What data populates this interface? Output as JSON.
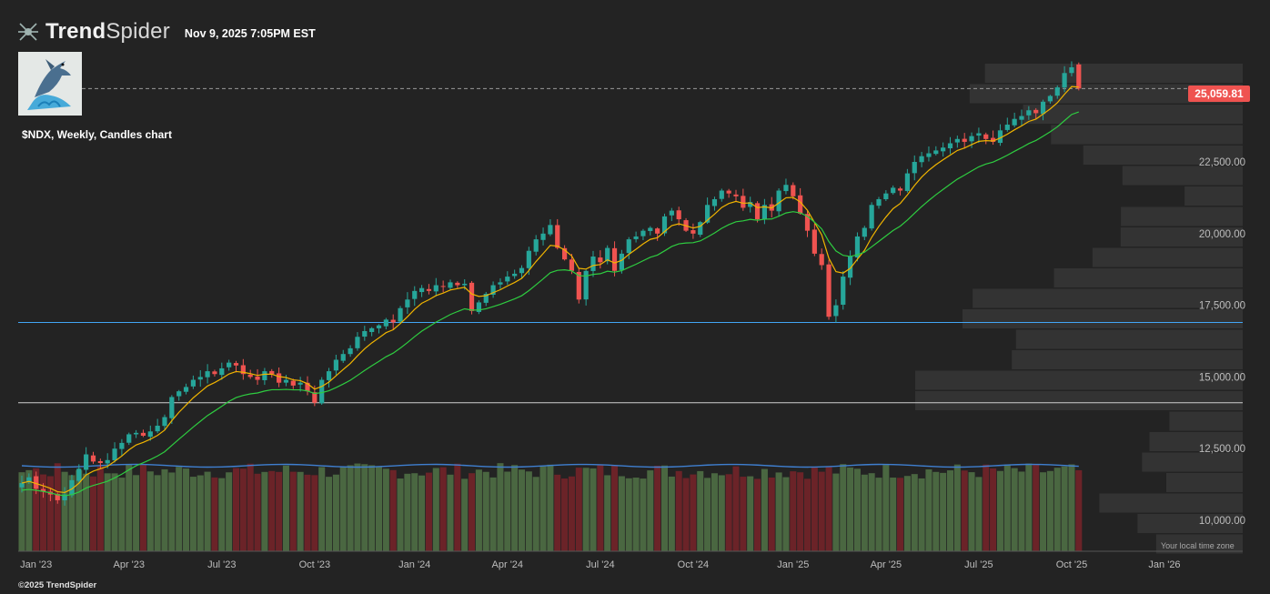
{
  "header": {
    "brand_bold": "Trend",
    "brand_light": "Spider",
    "datetime": "Nov 9, 2025 7:05PM EST"
  },
  "chart_title": "$NDX, Weekly, Candles chart",
  "footer": {
    "copyright": "©2025 TrendSpider",
    "timezone_note": "Your local time zone"
  },
  "colors": {
    "background": "#232323",
    "up_candle": "#26a69a",
    "down_candle": "#ef5350",
    "ema_fast": "#f0b400",
    "ema_slow": "#2ecc40",
    "hline_blue": "#42a5f5",
    "hline_white": "#d0d0d0",
    "vol_up": "#4a6741",
    "vol_down": "#6b2328",
    "profile": "#3a3a3a",
    "last_price": "#ef5350"
  },
  "chart_data": {
    "type": "candlestick",
    "symbol": "$NDX",
    "timeframe": "Weekly",
    "last_price_label": "25,059.81",
    "y_ticks": [
      {
        "value": 10000,
        "label": "10,000.00"
      },
      {
        "value": 12500,
        "label": "12,500.00"
      },
      {
        "value": 15000,
        "label": "15,000.00"
      },
      {
        "value": 17500,
        "label": "17,500.00"
      },
      {
        "value": 20000,
        "label": "20,000.00"
      },
      {
        "value": 22500,
        "label": "22,500.00"
      }
    ],
    "x_ticks": [
      {
        "index": 2,
        "label": "Jan '23"
      },
      {
        "index": 15,
        "label": "Apr '23"
      },
      {
        "index": 28,
        "label": "Jul '23"
      },
      {
        "index": 41,
        "label": "Oct '23"
      },
      {
        "index": 55,
        "label": "Jan '24"
      },
      {
        "index": 68,
        "label": "Apr '24"
      },
      {
        "index": 81,
        "label": "Jul '24"
      },
      {
        "index": 94,
        "label": "Oct '24"
      },
      {
        "index": 108,
        "label": "Jan '25"
      },
      {
        "index": 121,
        "label": "Apr '25"
      },
      {
        "index": 134,
        "label": "Jul '25"
      },
      {
        "index": 147,
        "label": "Oct '25"
      },
      {
        "index": 160,
        "label": "Jan '26"
      }
    ],
    "horizontal_levels": [
      16900,
      14100
    ],
    "anchors": [
      [
        0,
        11300
      ],
      [
        1,
        11500
      ],
      [
        2,
        11100
      ],
      [
        3,
        11000
      ],
      [
        4,
        10900
      ],
      [
        5,
        10700
      ],
      [
        6,
        10900
      ],
      [
        7,
        11400
      ],
      [
        8,
        11800
      ],
      [
        9,
        12300
      ],
      [
        10,
        12050
      ],
      [
        11,
        12000
      ],
      [
        12,
        12100
      ],
      [
        13,
        12500
      ],
      [
        14,
        12700
      ],
      [
        15,
        13000
      ],
      [
        16,
        13050
      ],
      [
        17,
        12950
      ],
      [
        18,
        13100
      ],
      [
        19,
        13300
      ],
      [
        20,
        13600
      ],
      [
        21,
        14300
      ],
      [
        22,
        14500
      ],
      [
        23,
        14650
      ],
      [
        24,
        14900
      ],
      [
        25,
        15000
      ],
      [
        26,
        15200
      ],
      [
        27,
        15100
      ],
      [
        28,
        15300
      ],
      [
        29,
        15500
      ],
      [
        30,
        15400
      ],
      [
        31,
        15100
      ],
      [
        32,
        15000
      ],
      [
        33,
        14900
      ],
      [
        34,
        15200
      ],
      [
        35,
        15100
      ],
      [
        36,
        14800
      ],
      [
        37,
        14900
      ],
      [
        38,
        14700
      ],
      [
        39,
        14800
      ],
      [
        40,
        14500
      ],
      [
        41,
        14100
      ],
      [
        42,
        14900
      ],
      [
        43,
        15200
      ],
      [
        44,
        15600
      ],
      [
        45,
        15800
      ],
      [
        46,
        16000
      ],
      [
        47,
        16400
      ],
      [
        48,
        16600
      ],
      [
        49,
        16700
      ],
      [
        50,
        16800
      ],
      [
        51,
        17000
      ],
      [
        52,
        16900
      ],
      [
        53,
        17400
      ],
      [
        54,
        17700
      ],
      [
        55,
        18000
      ],
      [
        56,
        18100
      ],
      [
        57,
        18000
      ],
      [
        58,
        18200
      ],
      [
        59,
        18150
      ],
      [
        60,
        18300
      ],
      [
        61,
        18200
      ],
      [
        62,
        18250
      ],
      [
        63,
        17300
      ],
      [
        64,
        17600
      ],
      [
        65,
        17900
      ],
      [
        66,
        18200
      ],
      [
        67,
        18300
      ],
      [
        68,
        18500
      ],
      [
        69,
        18600
      ],
      [
        70,
        18800
      ],
      [
        71,
        19400
      ],
      [
        72,
        19800
      ],
      [
        73,
        20000
      ],
      [
        74,
        20300
      ],
      [
        75,
        19500
      ],
      [
        76,
        19100
      ],
      [
        77,
        18700
      ],
      [
        78,
        17700
      ],
      [
        79,
        18700
      ],
      [
        80,
        19200
      ],
      [
        81,
        19000
      ],
      [
        82,
        19500
      ],
      [
        83,
        18700
      ],
      [
        84,
        19300
      ],
      [
        85,
        19800
      ],
      [
        86,
        19900
      ],
      [
        87,
        20100
      ],
      [
        88,
        20200
      ],
      [
        89,
        20000
      ],
      [
        90,
        20600
      ],
      [
        91,
        20800
      ],
      [
        92,
        20500
      ],
      [
        93,
        20100
      ],
      [
        94,
        20000
      ],
      [
        95,
        20400
      ],
      [
        96,
        21000
      ],
      [
        97,
        21200
      ],
      [
        98,
        21500
      ],
      [
        99,
        21400
      ],
      [
        100,
        21300
      ],
      [
        101,
        20900
      ],
      [
        102,
        21100
      ],
      [
        103,
        20500
      ],
      [
        104,
        21000
      ],
      [
        105,
        20800
      ],
      [
        106,
        21500
      ],
      [
        107,
        21700
      ],
      [
        108,
        21300
      ],
      [
        109,
        20700
      ],
      [
        110,
        20100
      ],
      [
        111,
        19300
      ],
      [
        112,
        18900
      ],
      [
        113,
        17100
      ],
      [
        114,
        17500
      ],
      [
        115,
        18500
      ],
      [
        116,
        19200
      ],
      [
        117,
        19900
      ],
      [
        118,
        20200
      ],
      [
        119,
        21000
      ],
      [
        120,
        21200
      ],
      [
        121,
        21400
      ],
      [
        122,
        21600
      ],
      [
        123,
        21500
      ],
      [
        124,
        22100
      ],
      [
        125,
        22500
      ],
      [
        126,
        22700
      ],
      [
        127,
        22800
      ],
      [
        128,
        22900
      ],
      [
        129,
        23000
      ],
      [
        130,
        23150
      ],
      [
        131,
        23300
      ],
      [
        132,
        23200
      ],
      [
        133,
        23400
      ],
      [
        134,
        23500
      ],
      [
        135,
        23300
      ],
      [
        136,
        23200
      ],
      [
        137,
        23600
      ],
      [
        138,
        23800
      ],
      [
        139,
        24000
      ],
      [
        140,
        24100
      ],
      [
        141,
        24300
      ],
      [
        142,
        24200
      ],
      [
        143,
        24600
      ],
      [
        144,
        24800
      ],
      [
        145,
        25100
      ],
      [
        146,
        25600
      ],
      [
        147,
        25800
      ],
      [
        148,
        25059.81
      ]
    ],
    "volume_note": "relative weekly volume bars with moving average",
    "indicators": [
      "EMA fast",
      "EMA slow"
    ]
  }
}
